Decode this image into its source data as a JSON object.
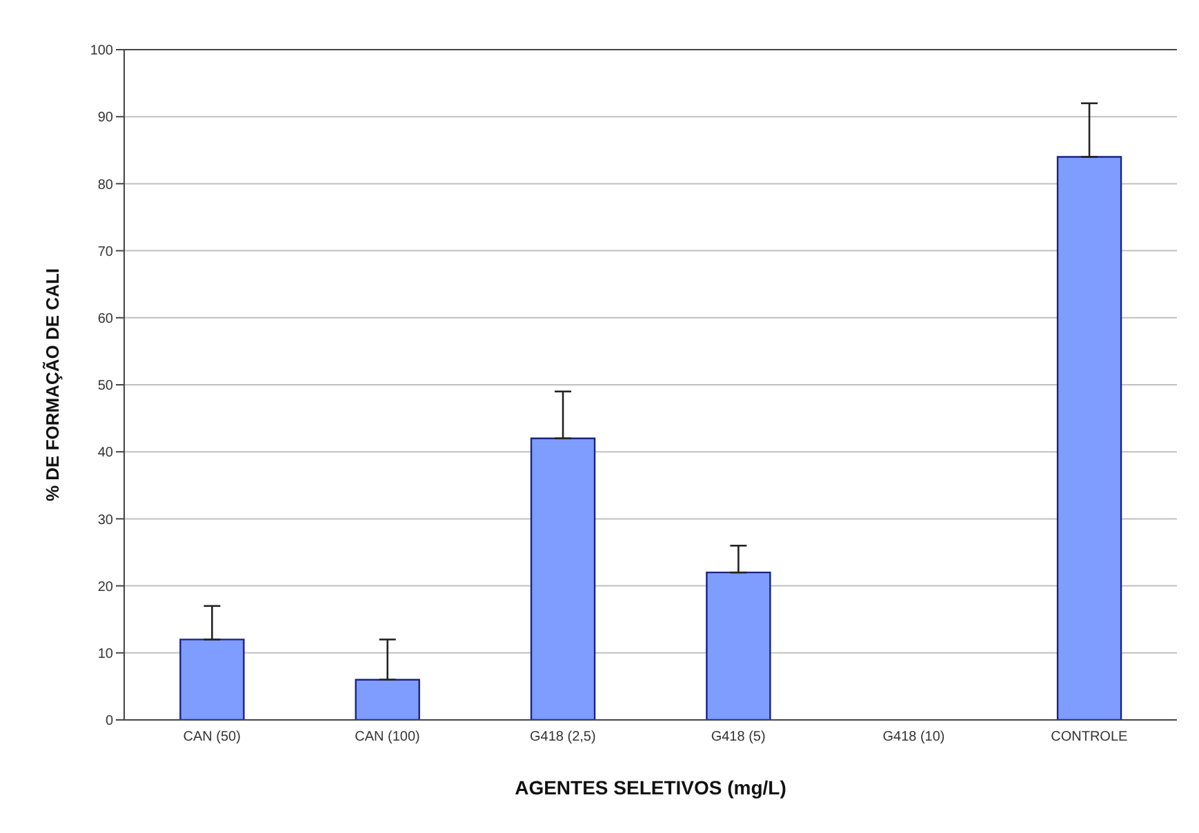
{
  "chart_data": {
    "type": "bar",
    "xlabel": "AGENTES SELETIVOS (mg/L)",
    "ylabel": "% DE FORMAÇÃO DE CALI",
    "categories": [
      "CAN (50)",
      "CAN (100)",
      "G418 (2,5)",
      "G418 (5)",
      "G418 (10)",
      "CONTROLE"
    ],
    "values": [
      12,
      6,
      42,
      22,
      0,
      84
    ],
    "errors": [
      [
        12,
        17
      ],
      [
        6,
        12
      ],
      [
        42,
        49
      ],
      [
        22,
        26
      ],
      null,
      [
        84,
        92
      ]
    ],
    "color": "#7f9cff",
    "ylim": [
      0,
      100
    ],
    "yticks": [
      0,
      10,
      20,
      30,
      40,
      50,
      60,
      70,
      80,
      90,
      100
    ],
    "grid": "y"
  }
}
